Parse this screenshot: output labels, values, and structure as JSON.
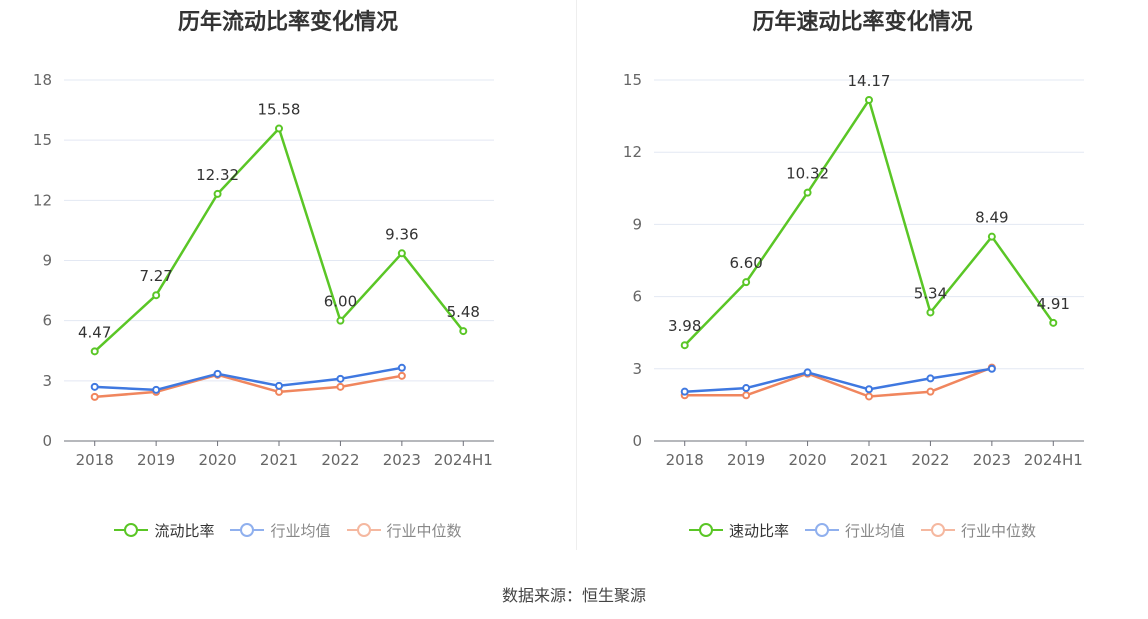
{
  "colors": {
    "main": "#5ac626",
    "avg": "#3f78e0",
    "median": "#f0865e"
  },
  "source": "数据来源：恒生聚源",
  "charts": [
    {
      "title": "历年流动比率变化情况",
      "legend": [
        "流动比率",
        "行业均值",
        "行业中位数"
      ],
      "yticks": [
        "0",
        "3",
        "6",
        "9",
        "12",
        "15",
        "18"
      ],
      "xticks": [
        "2018",
        "2019",
        "2020",
        "2021",
        "2022",
        "2023",
        "2024H1"
      ],
      "data_labels": [
        "4.47",
        "7.27",
        "12.32",
        "15.58",
        "6.00",
        "9.36",
        "5.48"
      ]
    },
    {
      "title": "历年速动比率变化情况",
      "legend": [
        "速动比率",
        "行业均值",
        "行业中位数"
      ],
      "yticks": [
        "0",
        "3",
        "6",
        "9",
        "12",
        "15"
      ],
      "xticks": [
        "2018",
        "2019",
        "2020",
        "2021",
        "2022",
        "2023",
        "2024H1"
      ],
      "data_labels": [
        "3.98",
        "6.60",
        "10.32",
        "14.17",
        "5.34",
        "8.49",
        "4.91"
      ]
    }
  ],
  "chart_data": [
    {
      "type": "line",
      "title": "历年流动比率变化情况",
      "categories": [
        "2018",
        "2019",
        "2020",
        "2021",
        "2022",
        "2023",
        "2024H1"
      ],
      "ylim": [
        0,
        18
      ],
      "grid": true,
      "legend_position": "bottom",
      "series": [
        {
          "name": "流动比率",
          "values": [
            4.47,
            7.27,
            12.32,
            15.58,
            6.0,
            9.36,
            5.48
          ]
        },
        {
          "name": "行业均值",
          "values": [
            2.7,
            2.55,
            3.35,
            2.75,
            3.1,
            3.65,
            null
          ]
        },
        {
          "name": "行业中位数",
          "values": [
            2.2,
            2.45,
            3.3,
            2.45,
            2.7,
            3.25,
            null
          ]
        }
      ]
    },
    {
      "type": "line",
      "title": "历年速动比率变化情况",
      "categories": [
        "2018",
        "2019",
        "2020",
        "2021",
        "2022",
        "2023",
        "2024H1"
      ],
      "ylim": [
        0,
        15
      ],
      "grid": true,
      "legend_position": "bottom",
      "series": [
        {
          "name": "速动比率",
          "values": [
            3.98,
            6.6,
            10.32,
            14.17,
            5.34,
            8.49,
            4.91
          ]
        },
        {
          "name": "行业均值",
          "values": [
            2.05,
            2.2,
            2.85,
            2.15,
            2.6,
            3.0,
            null
          ]
        },
        {
          "name": "行业中位数",
          "values": [
            1.9,
            1.9,
            2.8,
            1.85,
            2.05,
            3.05,
            null
          ]
        }
      ]
    }
  ]
}
